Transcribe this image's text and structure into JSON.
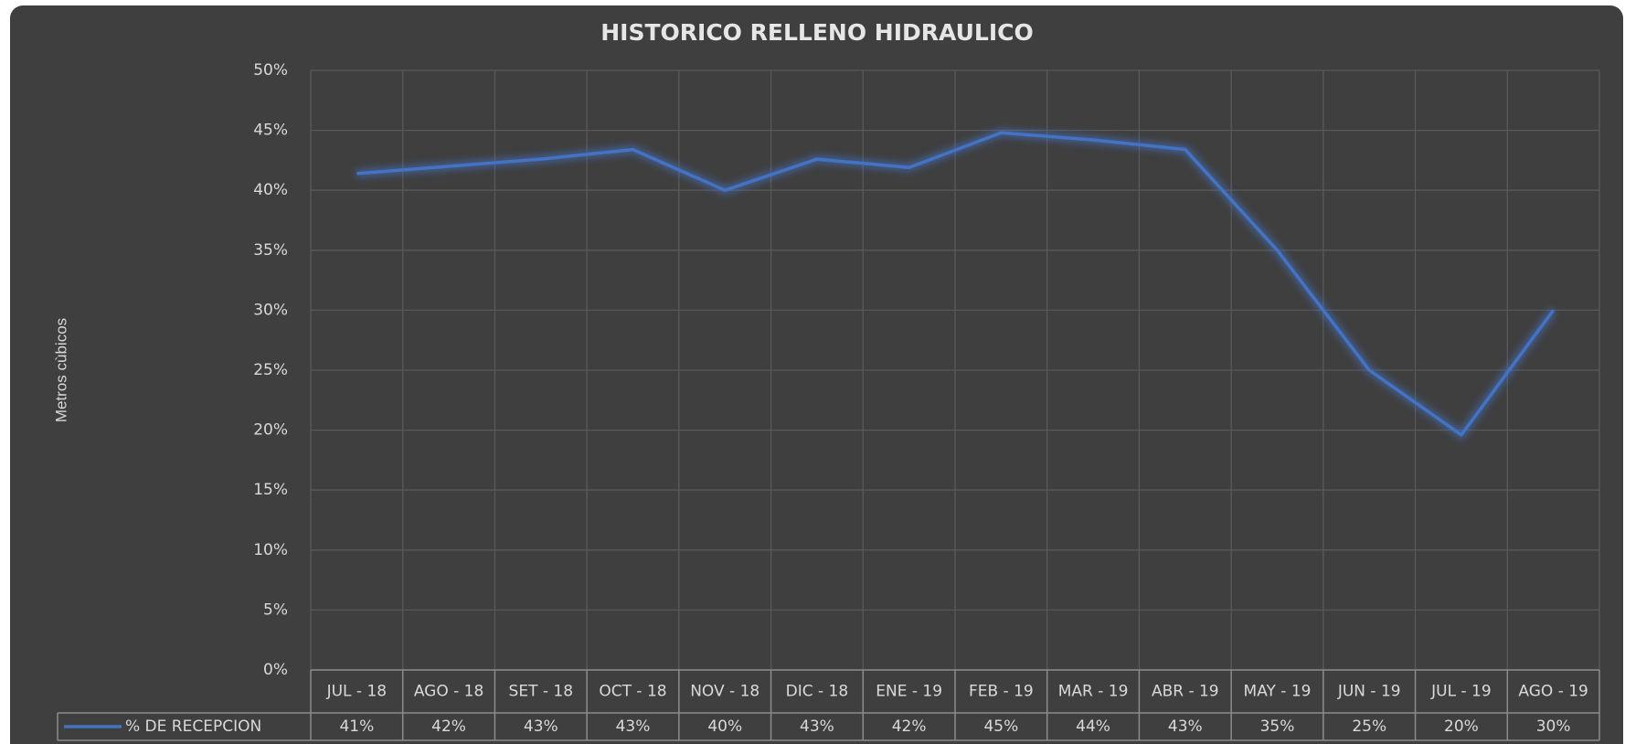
{
  "chart_data": {
    "type": "line",
    "title": "HISTORICO RELLENO HIDRAULICO",
    "y_label": "Metros cùbicos",
    "categories": [
      "JUL - 18",
      "AGO - 18",
      "SET - 18",
      "OCT - 18",
      "NOV - 18",
      "DIC - 18",
      "ENE - 19",
      "FEB - 19",
      "MAR - 19",
      "ABR - 19",
      "MAY - 19",
      "JUN - 19",
      "JUL - 19",
      "AGO - 19"
    ],
    "series": [
      {
        "name": "% DE RECEPCION",
        "color": "#4472c4",
        "values": [
          41.4,
          42.0,
          42.6,
          43.4,
          40.0,
          42.6,
          41.9,
          44.8,
          44.2,
          43.4,
          35.0,
          25.0,
          19.6,
          30.0
        ],
        "value_labels": [
          "41%",
          "42%",
          "43%",
          "43%",
          "40%",
          "43%",
          "42%",
          "45%",
          "44%",
          "43%",
          "35%",
          "25%",
          "20%",
          "30%"
        ]
      }
    ],
    "ylim": [
      0,
      50
    ],
    "yticks": [
      {
        "value": 0,
        "label": "0%"
      },
      {
        "value": 5,
        "label": "5%"
      },
      {
        "value": 10,
        "label": "10%"
      },
      {
        "value": 15,
        "label": "15%"
      },
      {
        "value": 20,
        "label": "20%"
      },
      {
        "value": 25,
        "label": "25%"
      },
      {
        "value": 30,
        "label": "30%"
      },
      {
        "value": 35,
        "label": "35%"
      },
      {
        "value": 40,
        "label": "40%"
      },
      {
        "value": 45,
        "label": "45%"
      },
      {
        "value": 50,
        "label": "50%"
      }
    ],
    "grid": true
  }
}
